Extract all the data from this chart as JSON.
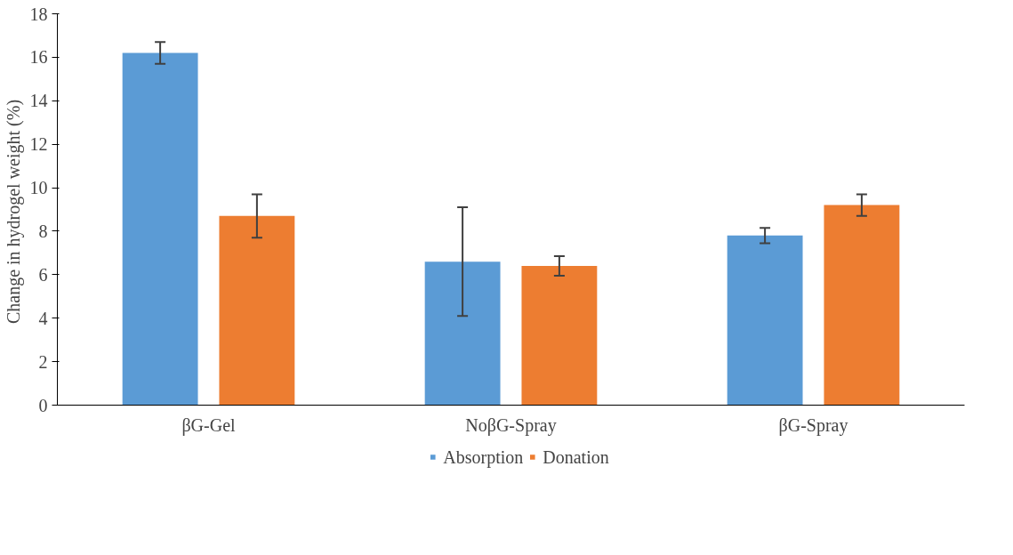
{
  "chart_data": {
    "type": "bar",
    "ylabel": "Change in hydrogel  weight (%)",
    "categories": [
      "βG-Gel",
      "NoβG-Spray",
      "βG-Spray"
    ],
    "series": [
      {
        "name": "Absorption",
        "color": "#5b9bd5",
        "values": [
          16.2,
          6.6,
          7.8
        ],
        "errors": [
          0.5,
          2.5,
          0.35
        ]
      },
      {
        "name": "Donation",
        "color": "#ed7d31",
        "values": [
          8.7,
          6.4,
          9.2
        ],
        "errors": [
          1.0,
          0.45,
          0.5
        ]
      }
    ],
    "ylim": [
      0,
      18
    ],
    "yticks": [
      0,
      2,
      4,
      6,
      8,
      10,
      12,
      14,
      16,
      18
    ],
    "grid": false,
    "legend": "bottom"
  }
}
